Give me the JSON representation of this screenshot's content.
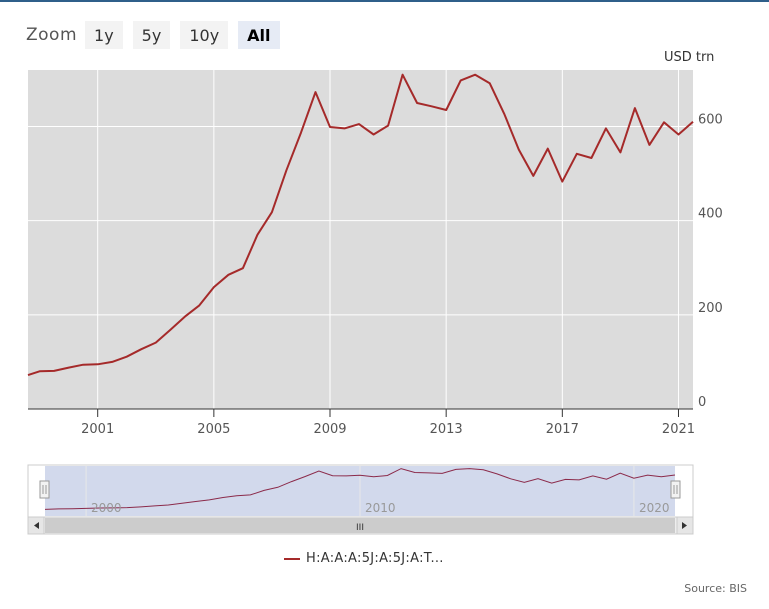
{
  "zoom": {
    "label": "Zoom",
    "buttons": [
      {
        "label": "1y",
        "active": false
      },
      {
        "label": "5y",
        "active": false
      },
      {
        "label": "10y",
        "active": false
      },
      {
        "label": "All",
        "active": true
      }
    ]
  },
  "unit_label": "USD trn",
  "source": "Source: BIS",
  "chart_data": {
    "type": "line",
    "xlabel": "",
    "ylabel": "USD trn",
    "xlim": [
      1998.6,
      2021.5
    ],
    "ylim": [
      0,
      720
    ],
    "y_ticks": [
      0,
      200,
      400,
      600
    ],
    "x_ticks": [
      2001,
      2005,
      2009,
      2013,
      2017,
      2021
    ],
    "grid": true,
    "legend_position": "bottom-center",
    "series": [
      {
        "name": "H:A:A:A:5J:A:5J:A:T...",
        "color": "#a52a2a",
        "x": [
          1998.5,
          1999.0,
          1999.5,
          2000.0,
          2000.5,
          2001.0,
          2001.5,
          2002.0,
          2002.5,
          2003.0,
          2003.5,
          2004.0,
          2004.5,
          2005.0,
          2005.5,
          2006.0,
          2006.5,
          2007.0,
          2007.5,
          2008.0,
          2008.5,
          2009.0,
          2009.5,
          2010.0,
          2010.5,
          2011.0,
          2011.5,
          2012.0,
          2012.5,
          2013.0,
          2013.5,
          2014.0,
          2014.5,
          2015.0,
          2015.5,
          2016.0,
          2016.5,
          2017.0,
          2017.5,
          2018.0,
          2018.5,
          2019.0,
          2019.5,
          2020.0,
          2020.5,
          2021.0,
          2021.5
        ],
        "values": [
          72,
          80,
          81,
          88,
          94,
          95,
          100,
          111,
          127,
          141,
          168,
          196,
          220,
          259,
          285,
          299,
          370,
          418,
          507,
          587,
          673,
          599,
          596,
          605,
          583,
          602,
          710,
          650,
          643,
          635,
          698,
          710,
          692,
          627,
          551,
          495,
          553,
          483,
          542,
          533,
          596,
          545,
          639,
          561,
          609,
          583,
          610
        ]
      }
    ]
  },
  "navigator": {
    "labels": [
      "2000",
      "2010",
      "2020"
    ],
    "scroll_grip": "III"
  }
}
